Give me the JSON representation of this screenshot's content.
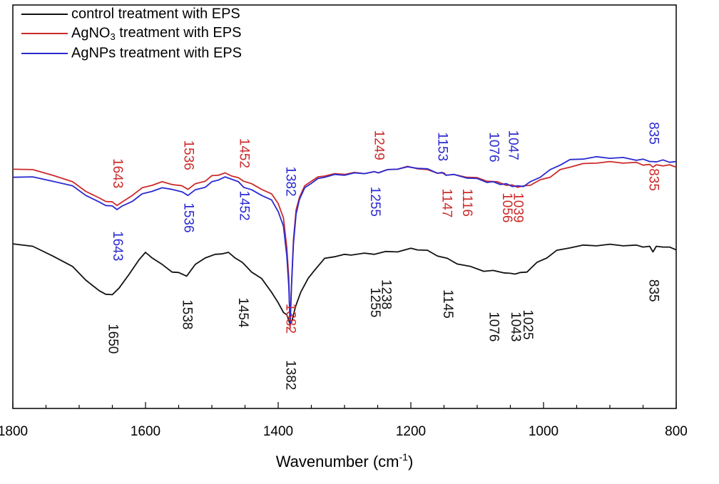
{
  "chart_data": {
    "type": "line",
    "xlabel": "Wavenumber (cm",
    "xlabel_sup": "-1",
    "xlabel_close": ")",
    "xlim": [
      1800,
      800
    ],
    "xticks": [
      1800,
      1600,
      1400,
      1200,
      1000,
      800
    ],
    "grid": false,
    "legend_position": "top-left",
    "legend": [
      {
        "text": "control treatment with EPS",
        "sub": "",
        "rest": "",
        "color": "#111111"
      },
      {
        "text": "AgNO",
        "sub": "3",
        "rest": " treatment with EPS",
        "color": "#cc2a2a"
      },
      {
        "text": "AgNPs treatment with EPS",
        "sub": "",
        "rest": "",
        "color": "#2a2ad0"
      }
    ],
    "series": [
      {
        "name": "control treatment with EPS",
        "color": "#111111",
        "x": [
          1800,
          1770,
          1740,
          1710,
          1690,
          1670,
          1660,
          1650,
          1640,
          1625,
          1610,
          1600,
          1590,
          1575,
          1560,
          1550,
          1538,
          1525,
          1510,
          1495,
          1485,
          1475,
          1465,
          1454,
          1440,
          1425,
          1410,
          1400,
          1392,
          1387,
          1384,
          1382,
          1379,
          1374,
          1366,
          1355,
          1345,
          1330,
          1315,
          1300,
          1290,
          1270,
          1255,
          1238,
          1220,
          1200,
          1190,
          1175,
          1160,
          1145,
          1130,
          1110,
          1090,
          1076,
          1060,
          1050,
          1043,
          1035,
          1025,
          1010,
          995,
          980,
          960,
          940,
          920,
          900,
          880,
          860,
          850,
          840,
          835,
          830,
          820,
          810,
          800
        ],
        "y": [
          0.41,
          0.4,
          0.38,
          0.35,
          0.32,
          0.29,
          0.285,
          0.28,
          0.3,
          0.33,
          0.37,
          0.385,
          0.375,
          0.355,
          0.34,
          0.335,
          0.33,
          0.355,
          0.375,
          0.38,
          0.385,
          0.385,
          0.375,
          0.36,
          0.34,
          0.32,
          0.29,
          0.26,
          0.24,
          0.23,
          0.22,
          0.205,
          0.22,
          0.25,
          0.29,
          0.32,
          0.345,
          0.37,
          0.378,
          0.38,
          0.382,
          0.383,
          0.384,
          0.387,
          0.39,
          0.395,
          0.395,
          0.39,
          0.38,
          0.37,
          0.36,
          0.35,
          0.342,
          0.34,
          0.338,
          0.333,
          0.335,
          0.335,
          0.34,
          0.36,
          0.375,
          0.39,
          0.4,
          0.403,
          0.405,
          0.405,
          0.405,
          0.403,
          0.402,
          0.4,
          0.39,
          0.4,
          0.402,
          0.398,
          0.395
        ]
      },
      {
        "name": "AgNO3 treatment with EPS",
        "color": "#cc2a2a",
        "x": [
          1800,
          1770,
          1740,
          1710,
          1690,
          1670,
          1660,
          1650,
          1643,
          1635,
          1620,
          1605,
          1590,
          1575,
          1560,
          1545,
          1536,
          1525,
          1510,
          1500,
          1490,
          1480,
          1470,
          1460,
          1452,
          1440,
          1425,
          1410,
          1400,
          1392,
          1387,
          1384,
          1382,
          1380,
          1377,
          1373,
          1368,
          1360,
          1350,
          1340,
          1330,
          1315,
          1300,
          1285,
          1270,
          1255,
          1249,
          1235,
          1220,
          1205,
          1190,
          1175,
          1160,
          1150,
          1147,
          1135,
          1116,
          1100,
          1085,
          1070,
          1056,
          1047,
          1039,
          1030,
          1020,
          1005,
          990,
          975,
          960,
          940,
          920,
          900,
          880,
          860,
          850,
          840,
          835,
          830,
          820,
          810,
          800
        ],
        "y": [
          0.595,
          0.59,
          0.58,
          0.56,
          0.54,
          0.52,
          0.515,
          0.51,
          0.505,
          0.51,
          0.53,
          0.545,
          0.555,
          0.56,
          0.557,
          0.55,
          0.545,
          0.555,
          0.565,
          0.575,
          0.58,
          0.582,
          0.578,
          0.57,
          0.565,
          0.555,
          0.545,
          0.53,
          0.51,
          0.47,
          0.4,
          0.32,
          0.2,
          0.3,
          0.42,
          0.49,
          0.525,
          0.55,
          0.565,
          0.572,
          0.578,
          0.58,
          0.582,
          0.583,
          0.584,
          0.585,
          0.586,
          0.59,
          0.595,
          0.598,
          0.596,
          0.59,
          0.585,
          0.582,
          0.58,
          0.578,
          0.575,
          0.57,
          0.565,
          0.56,
          0.555,
          0.552,
          0.55,
          0.55,
          0.555,
          0.565,
          0.575,
          0.59,
          0.6,
          0.605,
          0.61,
          0.61,
          0.61,
          0.608,
          0.605,
          0.603,
          0.6,
          0.602,
          0.603,
          0.602,
          0.6
        ]
      },
      {
        "name": "AgNPs treatment with EPS",
        "color": "#2a2ad0",
        "x": [
          1800,
          1770,
          1740,
          1710,
          1690,
          1670,
          1660,
          1650,
          1643,
          1635,
          1620,
          1605,
          1590,
          1575,
          1560,
          1545,
          1536,
          1525,
          1510,
          1500,
          1490,
          1480,
          1470,
          1460,
          1452,
          1440,
          1425,
          1410,
          1400,
          1392,
          1387,
          1384,
          1382,
          1380,
          1377,
          1373,
          1368,
          1360,
          1350,
          1340,
          1330,
          1315,
          1300,
          1285,
          1270,
          1255,
          1249,
          1235,
          1220,
          1205,
          1190,
          1175,
          1160,
          1153,
          1147,
          1135,
          1116,
          1100,
          1085,
          1076,
          1065,
          1056,
          1047,
          1039,
          1030,
          1020,
          1005,
          990,
          975,
          960,
          940,
          920,
          900,
          880,
          860,
          850,
          840,
          835,
          830,
          820,
          810,
          800
        ],
        "y": [
          0.575,
          0.572,
          0.565,
          0.55,
          0.53,
          0.51,
          0.505,
          0.5,
          0.495,
          0.5,
          0.515,
          0.53,
          0.54,
          0.545,
          0.545,
          0.535,
          0.53,
          0.54,
          0.55,
          0.56,
          0.568,
          0.572,
          0.57,
          0.56,
          0.55,
          0.54,
          0.53,
          0.515,
          0.49,
          0.45,
          0.38,
          0.3,
          0.21,
          0.3,
          0.41,
          0.48,
          0.52,
          0.545,
          0.56,
          0.568,
          0.575,
          0.578,
          0.58,
          0.582,
          0.584,
          0.585,
          0.586,
          0.59,
          0.595,
          0.597,
          0.597,
          0.592,
          0.585,
          0.583,
          0.58,
          0.578,
          0.573,
          0.568,
          0.562,
          0.56,
          0.557,
          0.555,
          0.552,
          0.55,
          0.552,
          0.56,
          0.575,
          0.59,
          0.605,
          0.615,
          0.62,
          0.622,
          0.622,
          0.62,
          0.617,
          0.616,
          0.614,
          0.61,
          0.613,
          0.614,
          0.612,
          0.61
        ]
      }
    ],
    "annotations": [
      {
        "text": "1643",
        "wn": 1643,
        "level": 0.62,
        "color": "#cc2a2a"
      },
      {
        "text": "1536",
        "wn": 1536,
        "level": 0.665,
        "color": "#cc2a2a"
      },
      {
        "text": "1452",
        "wn": 1452,
        "level": 0.67,
        "color": "#cc2a2a"
      },
      {
        "text": "1249",
        "wn": 1249,
        "level": 0.69,
        "color": "#cc2a2a"
      },
      {
        "text": "1147",
        "wn": 1147,
        "level": 0.545,
        "color": "#cc2a2a"
      },
      {
        "text": "1116",
        "wn": 1116,
        "level": 0.545,
        "color": "#cc2a2a"
      },
      {
        "text": "1056",
        "wn": 1056,
        "level": 0.535,
        "color": "#cc2a2a"
      },
      {
        "text": "1039",
        "wn": 1039,
        "level": 0.535,
        "color": "#cc2a2a"
      },
      {
        "text": "835",
        "wn": 835,
        "level": 0.595,
        "color": "#cc2a2a"
      },
      {
        "text": "1382",
        "wn": 1382,
        "level": 0.26,
        "color": "#cc2a2a"
      },
      {
        "text": "1643",
        "wn": 1643,
        "level": 0.44,
        "color": "#2a2ad0"
      },
      {
        "text": "1536",
        "wn": 1536,
        "level": 0.51,
        "color": "#2a2ad0"
      },
      {
        "text": "1452",
        "wn": 1452,
        "level": 0.54,
        "color": "#2a2ad0"
      },
      {
        "text": "1382",
        "wn": 1382,
        "level": 0.6,
        "color": "#2a2ad0"
      },
      {
        "text": "1255",
        "wn": 1255,
        "level": 0.55,
        "color": "#2a2ad0"
      },
      {
        "text": "1153",
        "wn": 1153,
        "level": 0.685,
        "color": "#2a2ad0"
      },
      {
        "text": "1076",
        "wn": 1076,
        "level": 0.685,
        "color": "#2a2ad0"
      },
      {
        "text": "1047",
        "wn": 1047,
        "level": 0.69,
        "color": "#2a2ad0"
      },
      {
        "text": "835",
        "wn": 835,
        "level": 0.71,
        "color": "#2a2ad0"
      },
      {
        "text": "1650",
        "wn": 1650,
        "level": 0.21,
        "color": "#111111"
      },
      {
        "text": "1538",
        "wn": 1538,
        "level": 0.27,
        "color": "#111111"
      },
      {
        "text": "1454",
        "wn": 1454,
        "level": 0.275,
        "color": "#111111"
      },
      {
        "text": "1382",
        "wn": 1382,
        "level": 0.12,
        "color": "#111111"
      },
      {
        "text": "1255",
        "wn": 1255,
        "level": 0.3,
        "color": "#111111"
      },
      {
        "text": "1238",
        "wn": 1238,
        "level": 0.32,
        "color": "#111111"
      },
      {
        "text": "1145",
        "wn": 1145,
        "level": 0.295,
        "color": "#111111"
      },
      {
        "text": "1076",
        "wn": 1076,
        "level": 0.24,
        "color": "#111111"
      },
      {
        "text": "1043",
        "wn": 1043,
        "level": 0.24,
        "color": "#111111"
      },
      {
        "text": "1025",
        "wn": 1025,
        "level": 0.245,
        "color": "#111111"
      },
      {
        "text": "835",
        "wn": 835,
        "level": 0.32,
        "color": "#111111"
      }
    ]
  }
}
